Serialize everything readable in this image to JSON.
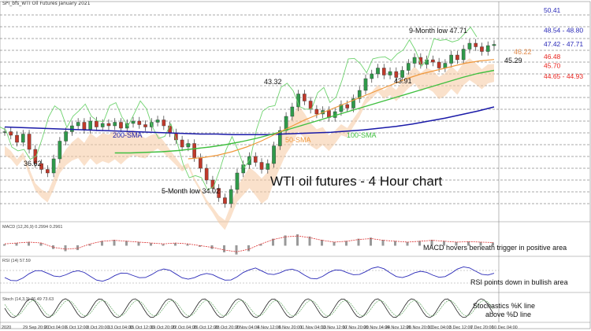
{
  "header": {
    "title": "SPI_bfs_WTI Oil Futures January 2021"
  },
  "chart_data": {
    "type": "line",
    "title": "WTI oil futures - 4 Hour chart",
    "price_levels": [
      {
        "label": "50.41",
        "value": 50.41,
        "color": "#2a2ab8"
      },
      {
        "label": "48.54 - 48.80",
        "value": 48.7,
        "color": "#2a2ab8"
      },
      {
        "label": "47.42 - 47.71",
        "value": 47.55,
        "color": "#2a2ab8"
      },
      {
        "label": "46.48",
        "value": 46.48,
        "color": "#e8241f"
      },
      {
        "label": "45.70",
        "value": 45.7,
        "color": "#e8241f"
      },
      {
        "label": "44.65 - 44.93",
        "value": 44.8,
        "color": "#e8241f"
      }
    ],
    "annotations": [
      {
        "text": "9-Month low 47.71"
      },
      {
        "text": "43.32"
      },
      {
        "text": "43.91"
      },
      {
        "text": "36.62"
      },
      {
        "text": "5-Month low 34.02"
      },
      {
        "text": "46.22"
      },
      {
        "text": "45.29"
      }
    ],
    "series_labels": [
      {
        "name": "200-SMA",
        "color": "#1a1aa8"
      },
      {
        "name": "50-SMA",
        "color": "#f0983c"
      },
      {
        "name": "100-SMA",
        "color": "#3fbf3f"
      }
    ],
    "x_tick_labels": [
      "2020",
      "29 Sep 20:00",
      "2 Oct 04:00",
      "6 Oct 12:00",
      "8 Oct 20:00",
      "13 Oct 04:00",
      "15 Oct 12:00",
      "19 Oct 20:00",
      "22 Oct 04:00",
      "26 Oct 12:00",
      "28 Oct 20:00",
      "2 Nov 04:00",
      "4 Nov 12:00",
      "6 Nov 20:00",
      "11 Nov 04:00",
      "13 Nov 12:00",
      "17 Nov 20:00",
      "20 Nov 04:00",
      "24 Nov 12:00",
      "26 Nov 20:00",
      "1 Dec 04:00",
      "3 Dec 12:00",
      "7 Dec 20:00",
      "10 Dec 04:00"
    ],
    "close": [
      40.1,
      39.8,
      39.2,
      39.9,
      38.6,
      37.4,
      36.9,
      36.6,
      37.8,
      39.3,
      40.1,
      40.6,
      40.9,
      40.3,
      41.0,
      40.5,
      40.8,
      40.6,
      40.9,
      40.4,
      40.8,
      41.0,
      40.7,
      40.5,
      40.9,
      41.1,
      40.6,
      40.0,
      39.4,
      38.8,
      39.1,
      37.9,
      37.0,
      36.0,
      35.3,
      34.5,
      34.0,
      35.2,
      36.6,
      37.3,
      38.0,
      37.5,
      36.9,
      37.4,
      38.9,
      40.2,
      41.4,
      42.2,
      43.3,
      42.7,
      42.0,
      41.6,
      41.9,
      41.3,
      41.8,
      42.4,
      42.1,
      42.9,
      43.6,
      44.6,
      45.0,
      45.5,
      44.9,
      45.2,
      44.7,
      45.3,
      45.9,
      46.4,
      45.8,
      46.2,
      46.0,
      45.5,
      45.9,
      46.6,
      46.2,
      47.1,
      47.6,
      47.3,
      46.9,
      47.4,
      47.5
    ],
    "sma200": [
      40.5,
      40.45,
      40.4,
      40.35,
      40.3,
      40.25,
      40.2,
      40.15,
      40.1,
      40.05,
      40.0,
      39.95,
      39.9,
      39.9,
      39.85,
      39.85,
      39.85,
      39.9,
      39.95,
      40.0,
      40.05,
      40.15,
      40.25,
      40.4,
      40.55,
      40.75,
      41.0,
      41.25,
      41.55,
      41.85,
      42.2
    ],
    "sma100": [
      38.3,
      38.3,
      38.35,
      38.4,
      38.5,
      38.65,
      38.8,
      39.0,
      39.25,
      39.55,
      39.9,
      40.3,
      40.7,
      41.1,
      41.5,
      41.9,
      42.3,
      42.7,
      43.1,
      43.5,
      43.9,
      44.3,
      44.7,
      45.05,
      45.3
    ],
    "sma50": [
      37.8,
      37.9,
      38.1,
      38.4,
      38.8,
      39.3,
      39.9,
      40.5,
      41.1,
      41.6,
      42.1,
      42.6,
      43.1,
      43.6,
      44.1,
      44.6,
      45.0,
      45.3,
      45.6,
      45.9,
      46.1,
      46.22
    ],
    "macd": [
      0.1,
      0.2,
      0.3,
      0.2,
      -0.3,
      -0.5,
      -0.4,
      0.1,
      0.4,
      0.5,
      0.4,
      0.3,
      0.2,
      0.1,
      0.2,
      0.1,
      -0.1,
      -0.3,
      -0.6,
      -0.8,
      -0.5,
      0.1,
      0.6,
      0.9,
      1.0,
      0.8,
      0.5,
      0.3,
      0.4,
      0.6,
      0.7,
      0.5,
      0.4,
      0.3,
      0.4,
      0.5,
      0.4,
      0.3,
      0.35,
      0.3,
      0.25
    ],
    "panels": [
      {
        "header": "MACD (12,26,9) 0.2994 0.2961",
        "note": "MACD hovers beneath trigger in positive area"
      },
      {
        "header": "RSI (14) 57.59",
        "note": "RSI points down in bullish area"
      },
      {
        "header": "Stoch (14,3,3) 76.49 73.63",
        "note": "Stochastics %K line above %D line"
      }
    ]
  }
}
